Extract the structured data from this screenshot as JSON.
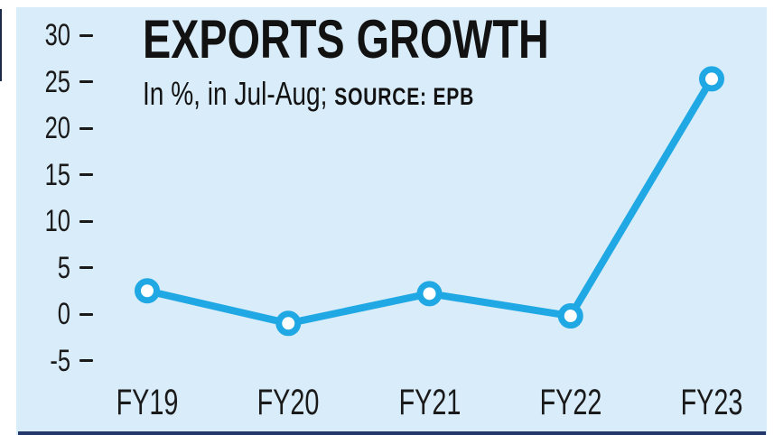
{
  "page": {
    "background": "#ffffff"
  },
  "card": {
    "background": "#d9ecf9",
    "accent_color": "#24386b"
  },
  "header": {
    "title": "EXPORTS GROWTH",
    "subtitle": "In %, in Jul-Aug;",
    "source_label": "SOURCE: EPB"
  },
  "chart_data": {
    "type": "line",
    "title": "EXPORTS GROWTH",
    "subtitle": "In %, in Jul-Aug; SOURCE: EPB",
    "categories": [
      "FY19",
      "FY20",
      "FY21",
      "FY22",
      "FY23"
    ],
    "series": [
      {
        "name": "Exports growth (%)",
        "values": [
          2.5,
          -1.0,
          2.2,
          -0.2,
          25.3
        ]
      }
    ],
    "xlabel": "",
    "ylabel": "",
    "ylim": [
      -5,
      30
    ],
    "yticks": [
      30,
      25,
      20,
      15,
      10,
      5,
      0,
      -5
    ],
    "grid": false,
    "legend": "none",
    "line_color": "#1fa8e3",
    "marker_style": "open-circle",
    "marker_fill": "#ffffff"
  }
}
